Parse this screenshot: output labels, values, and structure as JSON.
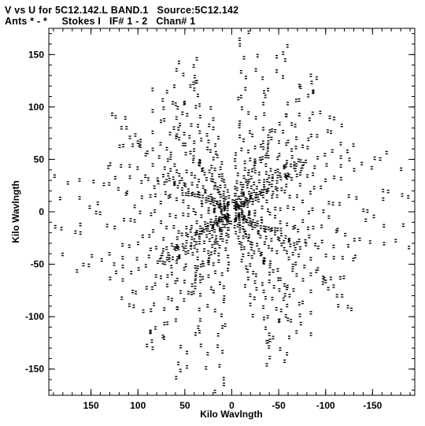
{
  "header": {
    "line1": "V vs U for 5C12.142.L BAND.1   Source:5C12.142",
    "line2": "Ants * - *     Stokes I   IF# 1 - 2   Chan# 1"
  },
  "chart_data": {
    "type": "scatter",
    "title": "V vs U for 5C12.142.L BAND.1   Source:5C12.142",
    "subtitle": "Ants * - *     Stokes I   IF# 1 - 2   Chan# 1",
    "xlabel": "Kilo Wavlngth",
    "ylabel": "Kilo Wavlngth",
    "xlim": [
      195,
      -195
    ],
    "ylim": [
      -175,
      175
    ],
    "x_ticks": [
      150,
      100,
      50,
      0,
      -50,
      -100,
      -150
    ],
    "x_tick_labels": [
      "150",
      "100",
      "50",
      "0",
      "-50",
      "-100",
      "-150"
    ],
    "y_ticks": [
      150,
      100,
      50,
      0,
      -50,
      -100,
      -150
    ],
    "y_tick_labels": [
      "150",
      "100",
      "50",
      "0",
      "-50",
      "-100",
      "-150"
    ],
    "grid": false,
    "marker": "short dash",
    "marker_color": "#000000",
    "series": [
      {
        "baselines": [
          {
            "angle_deg": 97,
            "r_max": 172
          },
          {
            "angle_deg": 121,
            "r_max": 162
          },
          {
            "angle_deg": 141,
            "r_max": 148
          },
          {
            "angle_deg": 163,
            "r_max": 182
          },
          {
            "angle_deg": 187,
            "r_max": 190
          },
          {
            "angle_deg": 211,
            "r_max": 140
          },
          {
            "angle_deg": 233,
            "r_max": 128
          },
          {
            "angle_deg": 247,
            "r_max": 155
          },
          {
            "angle_deg": 74,
            "r_max": 150
          },
          {
            "angle_deg": 56,
            "r_max": 142
          },
          {
            "angle_deg": 37,
            "r_max": 160
          },
          {
            "angle_deg": 18,
            "r_max": 140
          },
          {
            "angle_deg": 357,
            "r_max": 188
          },
          {
            "angle_deg": 334,
            "r_max": 145
          },
          {
            "angle_deg": 311,
            "r_max": 150
          },
          {
            "angle_deg": 289,
            "r_max": 172
          },
          {
            "angle_deg": 300,
            "r_max": 90
          },
          {
            "angle_deg": 324,
            "r_max": 95
          },
          {
            "angle_deg": 150,
            "r_max": 90
          },
          {
            "angle_deg": 204,
            "r_max": 85
          }
        ],
        "points_per_baseline": 26,
        "angular_spread_deg": 5
      }
    ]
  }
}
